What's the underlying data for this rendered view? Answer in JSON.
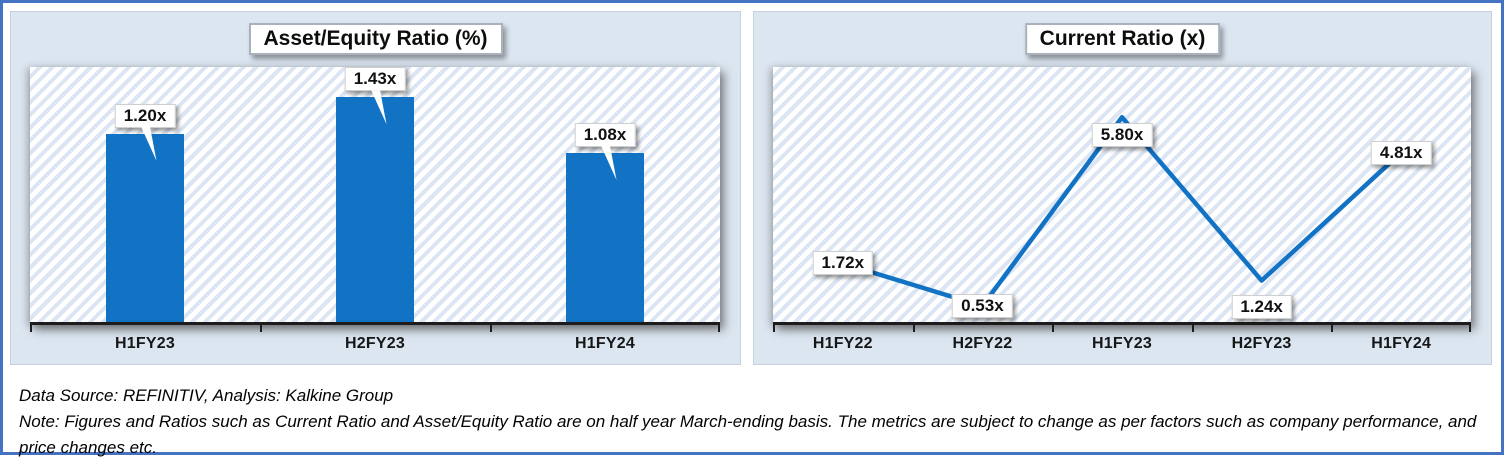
{
  "colors": {
    "accent_blue": "#1273c5",
    "frame_border": "#4473c4",
    "card_background": "#dce6f1",
    "hatch_stripe": "#dbe5f3",
    "axis": "#1c1c1c"
  },
  "chart_data": [
    {
      "type": "bar",
      "title": "Asset/Equity Ratio (%)",
      "categories": [
        "H1FY23",
        "H2FY23",
        "H1FY24"
      ],
      "values": [
        1.2,
        1.43,
        1.08
      ],
      "point_labels": [
        "1.20x",
        "1.43x",
        "1.08x"
      ],
      "ylim": [
        0,
        1.62
      ],
      "grid": false,
      "legend": false,
      "label_placement": [
        "above",
        "above",
        "above"
      ]
    },
    {
      "type": "line",
      "title": "Current Ratio (x)",
      "categories": [
        "H1FY22",
        "H2FY22",
        "H1FY23",
        "H2FY23",
        "H1FY24"
      ],
      "values": [
        1.72,
        0.53,
        5.8,
        1.24,
        4.81
      ],
      "point_labels": [
        "1.72x",
        "0.53x",
        "5.80x",
        "1.24x",
        "4.81x"
      ],
      "ylim": [
        0,
        7.2
      ],
      "grid": false,
      "legend": false,
      "label_placement": [
        "center",
        "center",
        "below",
        "below",
        "center"
      ]
    }
  ],
  "footer": {
    "data_source": "Data Source: REFINITIV, Analysis: Kalkine Group",
    "note_line_1": "Note: Figures and Ratios such as Current Ratio and Asset/Equity Ratio are on half year March-ending basis. The metrics are subject to change as per factors such as company performance, and",
    "note_line_2": "price changes etc."
  }
}
